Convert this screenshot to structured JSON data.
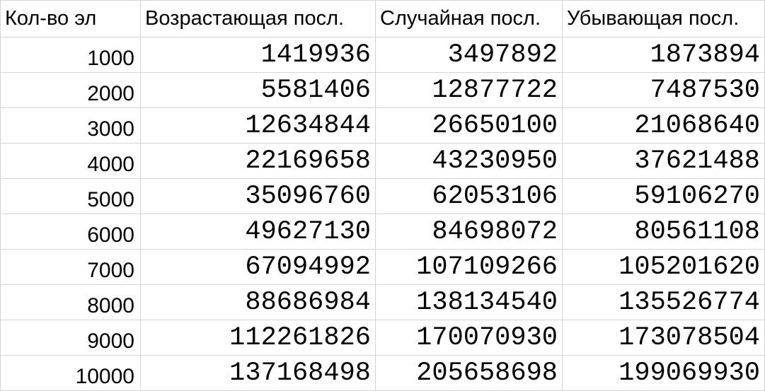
{
  "table": {
    "headers": [
      "Кол-во эл",
      "Возрастающая посл.",
      "Случайная посл.",
      "Убывающая посл."
    ],
    "rows": [
      [
        "1000",
        "1419936",
        "3497892",
        "1873894"
      ],
      [
        "2000",
        "5581406",
        "12877722",
        "7487530"
      ],
      [
        "3000",
        "12634844",
        "26650100",
        "21068640"
      ],
      [
        "4000",
        "22169658",
        "43230950",
        "37621488"
      ],
      [
        "5000",
        "35096760",
        "62053106",
        "59106270"
      ],
      [
        "6000",
        "49627130",
        "84698072",
        "80561108"
      ],
      [
        "7000",
        "67094992",
        "107109266",
        "105201620"
      ],
      [
        "8000",
        "88686984",
        "138134540",
        "135526774"
      ],
      [
        "9000",
        "112261826",
        "170070930",
        "173078504"
      ],
      [
        "10000",
        "137168498",
        "205658698",
        "199069930"
      ]
    ]
  }
}
